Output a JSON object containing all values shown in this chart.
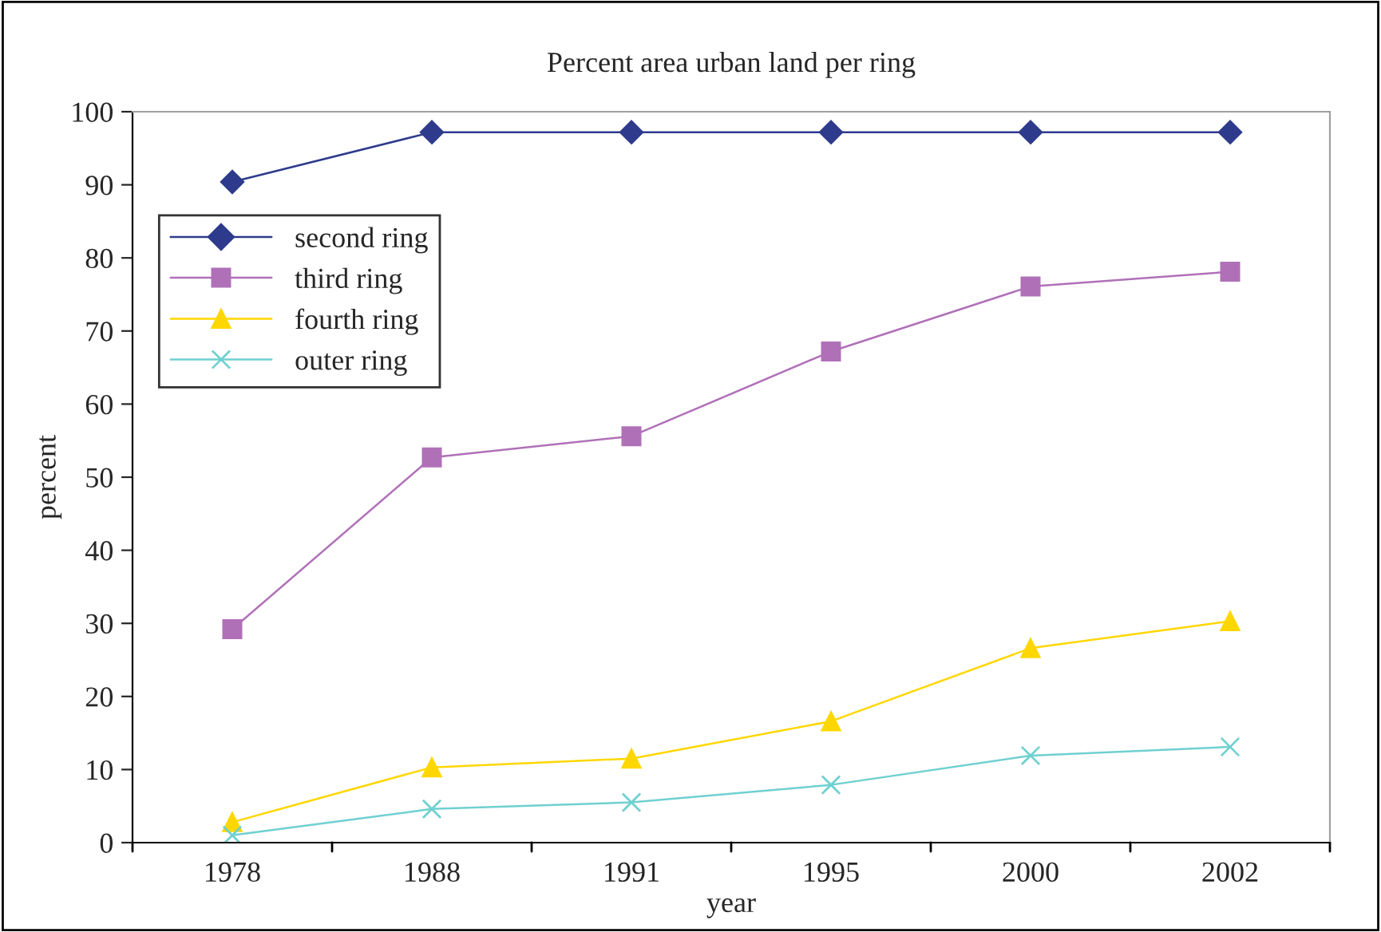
{
  "chart_data": {
    "type": "line",
    "title": "Percent area urban land per ring",
    "xlabel": "year",
    "ylabel": "percent",
    "categories": [
      "1978",
      "1988",
      "1991",
      "1995",
      "2000",
      "2002"
    ],
    "series": [
      {
        "name": "second ring",
        "color": "#2e3b8c",
        "marker": "diamond",
        "values": [
          90.4,
          97.2,
          97.2,
          97.2,
          97.2,
          97.2
        ]
      },
      {
        "name": "third ring",
        "color": "#b070b8",
        "marker": "square",
        "values": [
          29.2,
          52.7,
          55.6,
          67.2,
          76.1,
          78.1
        ]
      },
      {
        "name": "fourth ring",
        "color": "#ffd700",
        "marker": "triangle",
        "values": [
          2.8,
          10.3,
          11.5,
          16.6,
          26.6,
          30.3
        ]
      },
      {
        "name": "outer ring",
        "color": "#70d0d0",
        "marker": "cross",
        "values": [
          1.0,
          4.6,
          5.5,
          7.9,
          11.9,
          13.1
        ]
      }
    ],
    "ylim": [
      0,
      100
    ],
    "yticks": [
      0,
      10,
      20,
      30,
      40,
      50,
      60,
      70,
      80,
      90,
      100
    ],
    "grid": false,
    "legend": "top left",
    "line_style": "solid"
  }
}
